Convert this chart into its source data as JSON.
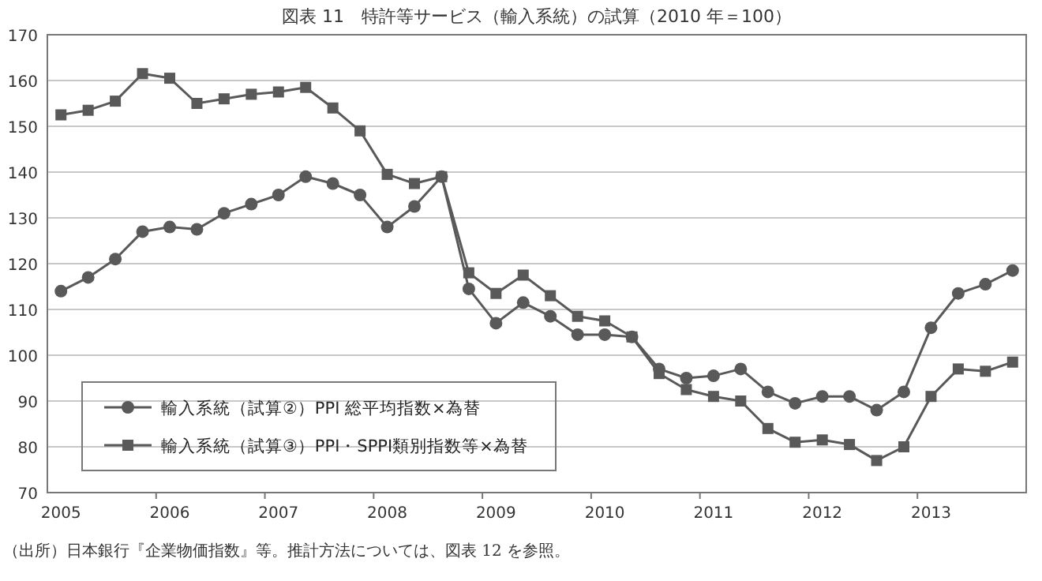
{
  "chart_data": {
    "type": "line",
    "title": "図表 11　特許等サービス（輸入系統）の試算（2010 年＝100）",
    "categories": [
      "2005",
      null,
      null,
      null,
      "2006",
      null,
      null,
      null,
      "2007",
      null,
      null,
      null,
      "2008",
      null,
      null,
      null,
      "2009",
      null,
      null,
      null,
      "2010",
      null,
      null,
      null,
      "2011",
      null,
      null,
      null,
      "2012",
      null,
      null,
      null,
      "2013",
      null,
      null,
      null
    ],
    "series": [
      {
        "name": "輸入系統（試算②）PPI 総平均指数×為替",
        "color": "#595959",
        "marker": "circle",
        "values": [
          114,
          117,
          121,
          127,
          128,
          127.5,
          131,
          133,
          135,
          139,
          137.5,
          135,
          128,
          132.5,
          139,
          114.5,
          107,
          111.5,
          108.5,
          104.5,
          104.5,
          104,
          97,
          95,
          95.5,
          97,
          92,
          89.5,
          91,
          91,
          88,
          92,
          106,
          113.5,
          115.5,
          118.5
        ]
      },
      {
        "name": "輸入系統（試算③）PPI・SPPI類別指数等×為替",
        "color": "#595959",
        "marker": "square",
        "values": [
          152.5,
          153.5,
          155.5,
          161.5,
          160.5,
          155,
          156,
          157,
          157.5,
          158.5,
          154,
          149,
          139.5,
          137.5,
          139,
          118,
          113.5,
          117.5,
          113,
          108.5,
          107.5,
          104,
          96,
          92.5,
          91,
          90,
          84,
          81,
          81.5,
          80.5,
          77,
          80,
          91,
          97,
          96.5,
          98.5
        ]
      }
    ],
    "ylim": [
      70,
      170
    ],
    "yticks": [
      70,
      80,
      90,
      100,
      110,
      120,
      130,
      140,
      150,
      160,
      170
    ],
    "grid": "y",
    "legend": "bottom left",
    "annotations": [
      "（出所）日本銀行『企業物価指数』等。推計方法については、図表 12 を参照。"
    ]
  }
}
